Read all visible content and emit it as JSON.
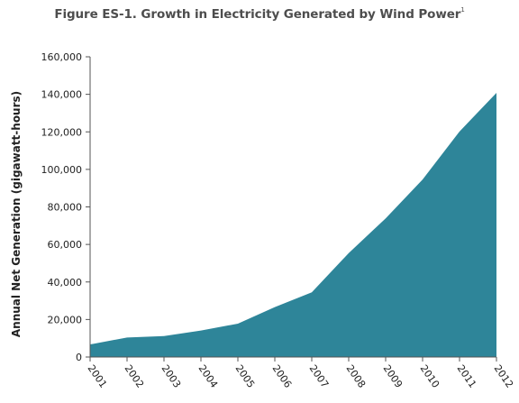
{
  "title": "Figure ES-1. Growth in Electricity Generated by Wind Power",
  "title_footnote": "1",
  "chart_data": {
    "type": "area",
    "title": "Figure ES-1. Growth in Electricity Generated by Wind Power",
    "xlabel": "",
    "ylabel": "Annual Net Generation (gigawatt-hours)",
    "categories": [
      "2001",
      "2002",
      "2003",
      "2004",
      "2005",
      "2006",
      "2007",
      "2008",
      "2009",
      "2010",
      "2011",
      "2012"
    ],
    "series": [
      {
        "values": [
          6700,
          10400,
          11200,
          14100,
          17800,
          26600,
          34500,
          55400,
          73900,
          94600,
          120200,
          140800
        ]
      }
    ],
    "ylim": [
      0,
      160000
    ],
    "y_ticks": [
      "0",
      "20,000",
      "40,000",
      "60,000",
      "80,000",
      "100,000",
      "120,000",
      "140,000",
      "160,000"
    ],
    "y_tick_values": [
      0,
      20000,
      40000,
      60000,
      80000,
      100000,
      120000,
      140000,
      160000
    ],
    "grid": false,
    "colors": {
      "area_fill": "#2e8599",
      "axis": "#555555"
    }
  }
}
